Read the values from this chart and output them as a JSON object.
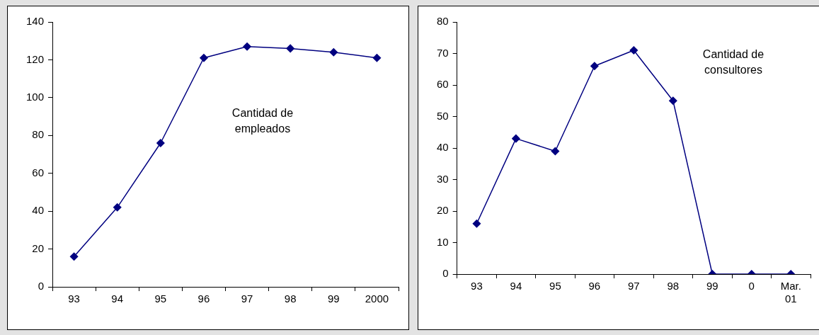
{
  "chart_data": [
    {
      "type": "line",
      "categories": [
        "93",
        "94",
        "95",
        "96",
        "97",
        "98",
        "99",
        "2000"
      ],
      "series": [
        {
          "color": "#000080",
          "values": [
            16,
            42,
            76,
            121,
            127,
            126,
            124,
            121
          ]
        }
      ],
      "ylim": [
        0,
        140
      ],
      "yticks": [
        0,
        20,
        40,
        60,
        80,
        100,
        120,
        140
      ],
      "marker": "diamond",
      "legend": false,
      "annotations": [
        "Cantidad de empleados"
      ]
    },
    {
      "type": "line",
      "categories": [
        "93",
        "94",
        "95",
        "96",
        "97",
        "98",
        "99",
        "0",
        "Mar. 01"
      ],
      "series": [
        {
          "color": "#000080",
          "values": [
            16,
            43,
            39,
            66,
            71,
            55,
            0,
            0,
            0
          ]
        }
      ],
      "ylim": [
        0,
        80
      ],
      "yticks": [
        0,
        10,
        20,
        30,
        40,
        50,
        60,
        70,
        80
      ],
      "marker": "diamond",
      "legend": false,
      "annotations": [
        "Cantidad de consultores"
      ]
    }
  ]
}
